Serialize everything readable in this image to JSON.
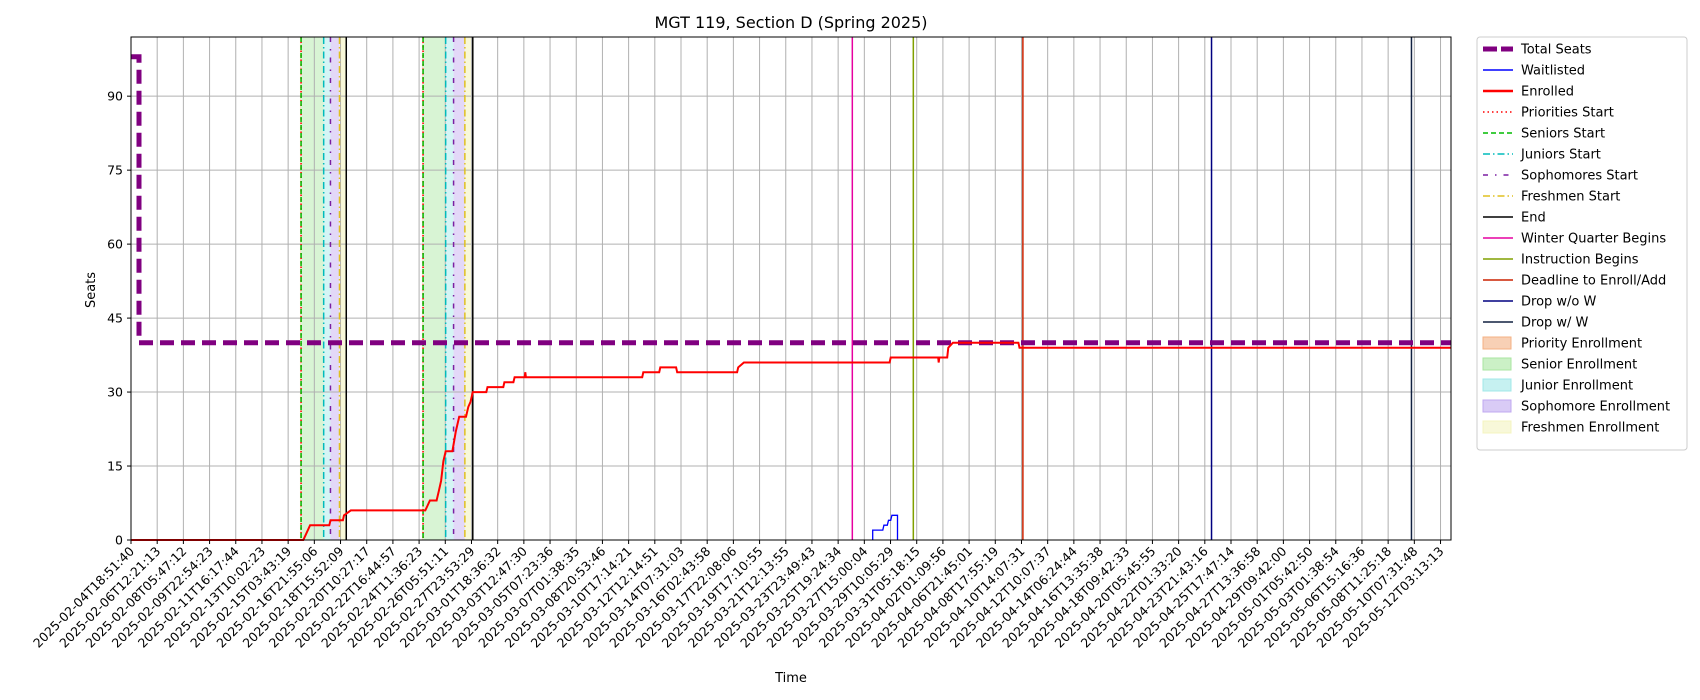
{
  "chart_data": {
    "type": "line",
    "title": "MGT 119, Section D (Spring 2025)",
    "xlabel": "Time",
    "ylabel": "Seats",
    "x_range": [
      "2025-02-04T18:51:40",
      "2025-05-13T04:00:00"
    ],
    "ylim": [
      0,
      102
    ],
    "yticks": [
      0,
      15,
      30,
      45,
      60,
      75,
      90
    ],
    "grid": true,
    "legend_position": "outside-right",
    "xtick_labels": [
      "2025-02-04T18:51:40",
      "2025-02-06T12:21:13",
      "2025-02-08T05:47:12",
      "2025-02-09T22:54:23",
      "2025-02-11T16:17:44",
      "2025-02-13T10:02:23",
      "2025-02-15T03:43:19",
      "2025-02-16T21:55:06",
      "2025-02-18T15:52:09",
      "2025-02-20T10:27:17",
      "2025-02-22T16:44:57",
      "2025-02-24T11:36:23",
      "2025-02-26T05:51:11",
      "2025-02-27T23:53:29",
      "2025-03-01T18:36:32",
      "2025-03-03T12:47:30",
      "2025-03-05T07:23:36",
      "2025-03-07T01:38:35",
      "2025-03-08T20:53:46",
      "2025-03-10T17:14:21",
      "2025-03-12T12:14:51",
      "2025-03-14T07:31:03",
      "2025-03-16T02:43:58",
      "2025-03-17T22:08:06",
      "2025-03-19T17:10:55",
      "2025-03-21T12:13:55",
      "2025-03-23T23:49:43",
      "2025-03-25T19:24:34",
      "2025-03-27T15:00:04",
      "2025-03-29T10:05:29",
      "2025-03-31T05:18:15",
      "2025-04-02T01:09:56",
      "2025-04-06T21:45:01",
      "2025-04-08T17:55:19",
      "2025-04-10T14:07:31",
      "2025-04-12T10:07:37",
      "2025-04-14T06:24:44",
      "2025-04-16T13:35:38",
      "2025-04-18T09:42:33",
      "2025-04-20T05:45:55",
      "2025-04-22T01:33:20",
      "2025-04-23T21:43:16",
      "2025-04-25T17:47:14",
      "2025-04-27T13:36:58",
      "2025-04-29T09:42:00",
      "2025-05-01T05:42:50",
      "2025-05-03T01:38:54",
      "2025-05-06T15:16:36",
      "2025-05-08T11:25:18",
      "2025-05-10T07:31:48",
      "2025-05-12T03:13:13"
    ],
    "series": [
      {
        "name": "Total Seats",
        "color": "#800080",
        "style": "thick-dashed",
        "points": [
          [
            "2025-02-04T18:51:40",
            98
          ],
          [
            "2025-02-05T09:00:00",
            98
          ],
          [
            "2025-02-05T09:00:00",
            40
          ],
          [
            "2025-05-13T04:00:00",
            40
          ]
        ]
      },
      {
        "name": "Waitlisted",
        "color": "#0000ff",
        "style": "solid",
        "points": [
          [
            "2025-03-31T12:00:00",
            0
          ],
          [
            "2025-03-31T12:00:00",
            2
          ],
          [
            "2025-04-01T06:00:00",
            2
          ],
          [
            "2025-04-01T08:00:00",
            3
          ],
          [
            "2025-04-01T14:00:00",
            3
          ],
          [
            "2025-04-01T16:00:00",
            4
          ],
          [
            "2025-04-01T20:00:00",
            4
          ],
          [
            "2025-04-01T22:00:00",
            5
          ],
          [
            "2025-04-02T08:00:00",
            5
          ],
          [
            "2025-04-02T08:00:00",
            0
          ]
        ]
      },
      {
        "name": "Enrolled",
        "color": "#ff0000",
        "style": "solid",
        "points": [
          [
            "2025-02-04T18:51:40",
            0
          ],
          [
            "2025-02-17T12:00:00",
            0
          ],
          [
            "2025-02-17T16:00:00",
            1
          ],
          [
            "2025-02-18T00:00:00",
            3
          ],
          [
            "2025-02-19T10:00:00",
            3
          ],
          [
            "2025-02-19T12:00:00",
            4
          ],
          [
            "2025-02-20T10:00:00",
            4
          ],
          [
            "2025-02-20T12:00:00",
            5
          ],
          [
            "2025-02-21T00:00:00",
            6
          ],
          [
            "2025-02-26T12:00:00",
            6
          ],
          [
            "2025-02-26T16:00:00",
            7
          ],
          [
            "2025-02-26T20:00:00",
            8
          ],
          [
            "2025-02-27T08:00:00",
            8
          ],
          [
            "2025-02-27T12:00:00",
            10
          ],
          [
            "2025-02-27T16:00:00",
            12
          ],
          [
            "2025-02-27T20:00:00",
            16
          ],
          [
            "2025-02-28T00:00:00",
            18
          ],
          [
            "2025-02-28T12:00:00",
            18
          ],
          [
            "2025-02-28T18:00:00",
            22
          ],
          [
            "2025-03-01T00:00:00",
            25
          ],
          [
            "2025-03-01T12:00:00",
            25
          ],
          [
            "2025-03-01T16:00:00",
            27
          ],
          [
            "2025-03-01T20:00:00",
            28
          ],
          [
            "2025-03-02T00:00:00",
            30
          ],
          [
            "2025-03-03T00:00:00",
            30
          ],
          [
            "2025-03-03T02:00:00",
            31
          ],
          [
            "2025-03-04T06:00:00",
            31
          ],
          [
            "2025-03-04T08:00:00",
            32
          ],
          [
            "2025-03-05T00:00:00",
            32
          ],
          [
            "2025-03-05T02:00:00",
            33
          ],
          [
            "2025-03-05T20:00:00",
            33
          ],
          [
            "2025-03-05T21:00:00",
            34
          ],
          [
            "2025-03-05T22:00:00",
            33
          ],
          [
            "2025-03-14T12:00:00",
            33
          ],
          [
            "2025-03-14T14:00:00",
            34
          ],
          [
            "2025-03-15T18:00:00",
            34
          ],
          [
            "2025-03-15T20:00:00",
            35
          ],
          [
            "2025-03-17T00:00:00",
            35
          ],
          [
            "2025-03-17T02:00:00",
            34
          ],
          [
            "2025-03-21T12:00:00",
            34
          ],
          [
            "2025-03-21T14:00:00",
            35
          ],
          [
            "2025-03-22T00:00:00",
            36
          ],
          [
            "2025-04-01T18:00:00",
            36
          ],
          [
            "2025-04-01T20:00:00",
            37
          ],
          [
            "2025-04-05T08:00:00",
            37
          ],
          [
            "2025-04-05T09:00:00",
            36
          ],
          [
            "2025-04-05T10:00:00",
            37
          ],
          [
            "2025-04-06T00:00:00",
            37
          ],
          [
            "2025-04-06T02:00:00",
            39
          ],
          [
            "2025-04-06T10:00:00",
            40
          ],
          [
            "2025-04-11T06:00:00",
            40
          ],
          [
            "2025-04-11T08:00:00",
            39
          ],
          [
            "2025-05-13T04:00:00",
            39
          ]
        ]
      }
    ],
    "vertical_lines": [
      {
        "name": "Priorities Start",
        "color": "#ff0000",
        "style": "dotted",
        "times": [
          "2025-02-17T08:00:00",
          "2025-02-26T08:00:00"
        ]
      },
      {
        "name": "Seniors Start",
        "color": "#00bb00",
        "style": "dashed",
        "times": [
          "2025-02-17T08:00:00",
          "2025-02-26T08:00:00"
        ]
      },
      {
        "name": "Juniors Start",
        "color": "#00bbbb",
        "style": "dashdot",
        "times": [
          "2025-02-19T00:00:00",
          "2025-02-28T00:00:00"
        ]
      },
      {
        "name": "Sophomores Start",
        "color": "#7b1fa2",
        "style": "loosely-dashdot",
        "times": [
          "2025-02-19T12:00:00",
          "2025-02-28T14:00:00"
        ]
      },
      {
        "name": "Freshmen Start",
        "color": "#e0c020",
        "style": "dashdot",
        "times": [
          "2025-02-20T04:00:00",
          "2025-03-01T10:00:00"
        ]
      },
      {
        "name": "End",
        "color": "#000000",
        "style": "solid",
        "times": [
          "2025-02-20T16:00:00",
          "2025-03-02T00:00:00"
        ]
      },
      {
        "name": "Winter Quarter Begins",
        "color": "#e600a0",
        "style": "solid",
        "times": [
          "2025-03-30T00:00:00"
        ]
      },
      {
        "name": "Instruction Begins",
        "color": "#80a000",
        "style": "solid",
        "times": [
          "2025-04-03T12:00:00"
        ]
      },
      {
        "name": "Deadline to Enroll/Add",
        "color": "#cc2200",
        "style": "solid",
        "times": [
          "2025-04-11T14:00:00"
        ]
      },
      {
        "name": "Drop w/o W",
        "color": "#000080",
        "style": "solid",
        "times": [
          "2025-04-25T12:00:00"
        ]
      },
      {
        "name": "Drop w/ W",
        "color": "#102040",
        "style": "solid",
        "times": [
          "2025-05-10T06:00:00"
        ]
      }
    ],
    "shaded_regions": [
      {
        "name": "Priority Enrollment",
        "color": "#f4b183",
        "opacity": 0.45,
        "spans": [
          [
            "2025-02-17T06:00:00",
            "2025-02-17T08:00:00"
          ],
          [
            "2025-02-26T06:00:00",
            "2025-02-26T08:00:00"
          ]
        ]
      },
      {
        "name": "Senior Enrollment",
        "color": "#a8e6a0",
        "opacity": 0.45,
        "spans": [
          [
            "2025-02-17T08:00:00",
            "2025-02-19T00:00:00"
          ],
          [
            "2025-02-26T08:00:00",
            "2025-02-28T00:00:00"
          ]
        ]
      },
      {
        "name": "Junior Enrollment",
        "color": "#a0e8e8",
        "opacity": 0.45,
        "spans": [
          [
            "2025-02-19T00:00:00",
            "2025-02-19T12:00:00"
          ],
          [
            "2025-02-28T00:00:00",
            "2025-02-28T14:00:00"
          ]
        ]
      },
      {
        "name": "Sophomore Enrollment",
        "color": "#c0a8f0",
        "opacity": 0.45,
        "spans": [
          [
            "2025-02-19T12:00:00",
            "2025-02-20T04:00:00"
          ],
          [
            "2025-02-28T14:00:00",
            "2025-03-01T10:00:00"
          ]
        ]
      },
      {
        "name": "Freshmen Enrollment",
        "color": "#f4f4c0",
        "opacity": 0.6,
        "spans": [
          [
            "2025-02-20T04:00:00",
            "2025-02-20T16:00:00"
          ],
          [
            "2025-03-01T10:00:00",
            "2025-03-02T00:00:00"
          ]
        ]
      }
    ],
    "legend_entries": [
      {
        "label": "Total Seats",
        "color": "#800080",
        "kind": "line",
        "style": "thick-dashed"
      },
      {
        "label": "Waitlisted",
        "color": "#0000ff",
        "kind": "line",
        "style": "solid"
      },
      {
        "label": "Enrolled",
        "color": "#ff0000",
        "kind": "line",
        "style": "solid-thick"
      },
      {
        "label": "Priorities Start",
        "color": "#ff0000",
        "kind": "line",
        "style": "dotted"
      },
      {
        "label": "Seniors Start",
        "color": "#00bb00",
        "kind": "line",
        "style": "dashed"
      },
      {
        "label": "Juniors Start",
        "color": "#00bbbb",
        "kind": "line",
        "style": "dashdot"
      },
      {
        "label": "Sophomores Start",
        "color": "#7b1fa2",
        "kind": "line",
        "style": "loosely-dashdot"
      },
      {
        "label": "Freshmen Start",
        "color": "#e0c020",
        "kind": "line",
        "style": "dashdot"
      },
      {
        "label": "End",
        "color": "#000000",
        "kind": "line",
        "style": "solid"
      },
      {
        "label": "Winter Quarter Begins",
        "color": "#e600a0",
        "kind": "line",
        "style": "solid"
      },
      {
        "label": "Instruction Begins",
        "color": "#80a000",
        "kind": "line",
        "style": "solid"
      },
      {
        "label": "Deadline to Enroll/Add",
        "color": "#cc2200",
        "kind": "line",
        "style": "solid"
      },
      {
        "label": "Drop w/o W",
        "color": "#000080",
        "kind": "line",
        "style": "solid"
      },
      {
        "label": "Drop w/ W",
        "color": "#102040",
        "kind": "line",
        "style": "solid"
      },
      {
        "label": "Priority Enrollment",
        "color": "#f4b183",
        "kind": "patch"
      },
      {
        "label": "Senior Enrollment",
        "color": "#a8e6a0",
        "kind": "patch"
      },
      {
        "label": "Junior Enrollment",
        "color": "#a0e8e8",
        "kind": "patch"
      },
      {
        "label": "Sophomore Enrollment",
        "color": "#c0a8f0",
        "kind": "patch"
      },
      {
        "label": "Freshmen Enrollment",
        "color": "#f4f4c0",
        "kind": "patch"
      }
    ]
  }
}
